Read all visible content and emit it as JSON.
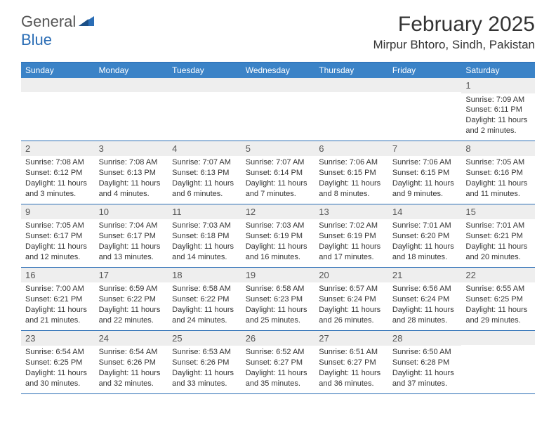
{
  "logo": {
    "general": "General",
    "blue": "Blue"
  },
  "header": {
    "month_title": "February 2025",
    "location": "Mirpur Bhtoro, Sindh, Pakistan"
  },
  "colors": {
    "header_bar": "#3b83c7",
    "accent_line": "#2a6db5",
    "alt_row_bg": "#eeeeee",
    "text": "#333333"
  },
  "days_of_week": [
    "Sunday",
    "Monday",
    "Tuesday",
    "Wednesday",
    "Thursday",
    "Friday",
    "Saturday"
  ],
  "weeks": [
    [
      {
        "n": "",
        "sr": "",
        "ss": "",
        "dl": ""
      },
      {
        "n": "",
        "sr": "",
        "ss": "",
        "dl": ""
      },
      {
        "n": "",
        "sr": "",
        "ss": "",
        "dl": ""
      },
      {
        "n": "",
        "sr": "",
        "ss": "",
        "dl": ""
      },
      {
        "n": "",
        "sr": "",
        "ss": "",
        "dl": ""
      },
      {
        "n": "",
        "sr": "",
        "ss": "",
        "dl": ""
      },
      {
        "n": "1",
        "sr": "Sunrise: 7:09 AM",
        "ss": "Sunset: 6:11 PM",
        "dl": "Daylight: 11 hours and 2 minutes."
      }
    ],
    [
      {
        "n": "2",
        "sr": "Sunrise: 7:08 AM",
        "ss": "Sunset: 6:12 PM",
        "dl": "Daylight: 11 hours and 3 minutes."
      },
      {
        "n": "3",
        "sr": "Sunrise: 7:08 AM",
        "ss": "Sunset: 6:13 PM",
        "dl": "Daylight: 11 hours and 4 minutes."
      },
      {
        "n": "4",
        "sr": "Sunrise: 7:07 AM",
        "ss": "Sunset: 6:13 PM",
        "dl": "Daylight: 11 hours and 6 minutes."
      },
      {
        "n": "5",
        "sr": "Sunrise: 7:07 AM",
        "ss": "Sunset: 6:14 PM",
        "dl": "Daylight: 11 hours and 7 minutes."
      },
      {
        "n": "6",
        "sr": "Sunrise: 7:06 AM",
        "ss": "Sunset: 6:15 PM",
        "dl": "Daylight: 11 hours and 8 minutes."
      },
      {
        "n": "7",
        "sr": "Sunrise: 7:06 AM",
        "ss": "Sunset: 6:15 PM",
        "dl": "Daylight: 11 hours and 9 minutes."
      },
      {
        "n": "8",
        "sr": "Sunrise: 7:05 AM",
        "ss": "Sunset: 6:16 PM",
        "dl": "Daylight: 11 hours and 11 minutes."
      }
    ],
    [
      {
        "n": "9",
        "sr": "Sunrise: 7:05 AM",
        "ss": "Sunset: 6:17 PM",
        "dl": "Daylight: 11 hours and 12 minutes."
      },
      {
        "n": "10",
        "sr": "Sunrise: 7:04 AM",
        "ss": "Sunset: 6:17 PM",
        "dl": "Daylight: 11 hours and 13 minutes."
      },
      {
        "n": "11",
        "sr": "Sunrise: 7:03 AM",
        "ss": "Sunset: 6:18 PM",
        "dl": "Daylight: 11 hours and 14 minutes."
      },
      {
        "n": "12",
        "sr": "Sunrise: 7:03 AM",
        "ss": "Sunset: 6:19 PM",
        "dl": "Daylight: 11 hours and 16 minutes."
      },
      {
        "n": "13",
        "sr": "Sunrise: 7:02 AM",
        "ss": "Sunset: 6:19 PM",
        "dl": "Daylight: 11 hours and 17 minutes."
      },
      {
        "n": "14",
        "sr": "Sunrise: 7:01 AM",
        "ss": "Sunset: 6:20 PM",
        "dl": "Daylight: 11 hours and 18 minutes."
      },
      {
        "n": "15",
        "sr": "Sunrise: 7:01 AM",
        "ss": "Sunset: 6:21 PM",
        "dl": "Daylight: 11 hours and 20 minutes."
      }
    ],
    [
      {
        "n": "16",
        "sr": "Sunrise: 7:00 AM",
        "ss": "Sunset: 6:21 PM",
        "dl": "Daylight: 11 hours and 21 minutes."
      },
      {
        "n": "17",
        "sr": "Sunrise: 6:59 AM",
        "ss": "Sunset: 6:22 PM",
        "dl": "Daylight: 11 hours and 22 minutes."
      },
      {
        "n": "18",
        "sr": "Sunrise: 6:58 AM",
        "ss": "Sunset: 6:22 PM",
        "dl": "Daylight: 11 hours and 24 minutes."
      },
      {
        "n": "19",
        "sr": "Sunrise: 6:58 AM",
        "ss": "Sunset: 6:23 PM",
        "dl": "Daylight: 11 hours and 25 minutes."
      },
      {
        "n": "20",
        "sr": "Sunrise: 6:57 AM",
        "ss": "Sunset: 6:24 PM",
        "dl": "Daylight: 11 hours and 26 minutes."
      },
      {
        "n": "21",
        "sr": "Sunrise: 6:56 AM",
        "ss": "Sunset: 6:24 PM",
        "dl": "Daylight: 11 hours and 28 minutes."
      },
      {
        "n": "22",
        "sr": "Sunrise: 6:55 AM",
        "ss": "Sunset: 6:25 PM",
        "dl": "Daylight: 11 hours and 29 minutes."
      }
    ],
    [
      {
        "n": "23",
        "sr": "Sunrise: 6:54 AM",
        "ss": "Sunset: 6:25 PM",
        "dl": "Daylight: 11 hours and 30 minutes."
      },
      {
        "n": "24",
        "sr": "Sunrise: 6:54 AM",
        "ss": "Sunset: 6:26 PM",
        "dl": "Daylight: 11 hours and 32 minutes."
      },
      {
        "n": "25",
        "sr": "Sunrise: 6:53 AM",
        "ss": "Sunset: 6:26 PM",
        "dl": "Daylight: 11 hours and 33 minutes."
      },
      {
        "n": "26",
        "sr": "Sunrise: 6:52 AM",
        "ss": "Sunset: 6:27 PM",
        "dl": "Daylight: 11 hours and 35 minutes."
      },
      {
        "n": "27",
        "sr": "Sunrise: 6:51 AM",
        "ss": "Sunset: 6:27 PM",
        "dl": "Daylight: 11 hours and 36 minutes."
      },
      {
        "n": "28",
        "sr": "Sunrise: 6:50 AM",
        "ss": "Sunset: 6:28 PM",
        "dl": "Daylight: 11 hours and 37 minutes."
      },
      {
        "n": "",
        "sr": "",
        "ss": "",
        "dl": ""
      }
    ]
  ]
}
